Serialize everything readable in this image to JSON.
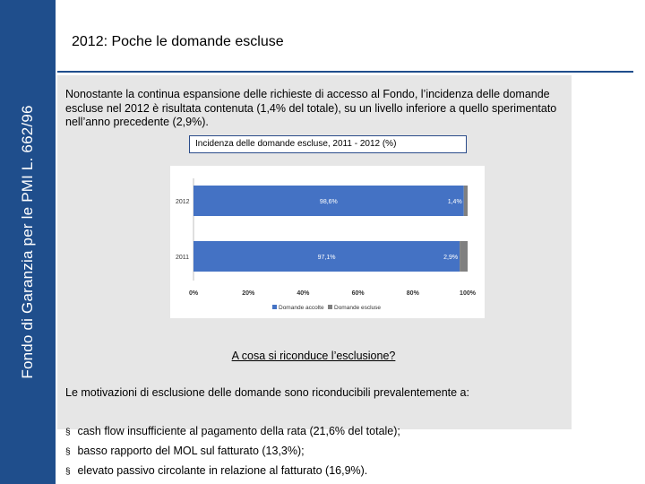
{
  "sidebar": {
    "text": "Fondo di Garanzia per le PMI L. 662/96"
  },
  "page": {
    "title": "2012: Poche le domande escluse"
  },
  "intro": {
    "text": "Nonostante la continua espansione delle richieste di accesso al Fondo, l’incidenza delle domande escluse nel 2012 è risultata contenuta (1,4% del totale), su un livello inferiore a quello sperimentato nell’anno precedente (2,9%)."
  },
  "chart_title": "Incidenza delle domande escluse, 2011 - 2012 (%)",
  "colors": {
    "sidebar": "#1f4e8c",
    "accolte": "#4472c4",
    "escluse": "#808080"
  },
  "chart_data": {
    "type": "bar",
    "orientation": "horizontal",
    "stacked": true,
    "title": "Incidenza delle domande escluse, 2011 - 2012 (%)",
    "categories": [
      "2012",
      "2011"
    ],
    "series": [
      {
        "name": "Domande accolte",
        "values": [
          98.6,
          97.1
        ],
        "labels": [
          "98,6%",
          "97,1%"
        ]
      },
      {
        "name": "Domande escluse",
        "values": [
          1.4,
          2.9
        ],
        "labels": [
          "1,4%",
          "2,9%"
        ]
      }
    ],
    "xlim": [
      0,
      100
    ],
    "xticks": [
      "0%",
      "20%",
      "40%",
      "60%",
      "80%",
      "100%"
    ],
    "grid": false,
    "legend": "bottom"
  },
  "question": "A cosa si riconduce l’esclusione?",
  "reasons": {
    "intro": "Le motivazioni di esclusione delle domande sono riconducibili prevalentemente a:",
    "bullet_symbol": "§",
    "items": [
      "cash flow insufficiente al pagamento della rata (21,6% del totale);",
      "basso rapporto del MOL sul fatturato (13,3%);",
      "elevato passivo circolante in relazione al fatturato (16,9%)."
    ]
  }
}
